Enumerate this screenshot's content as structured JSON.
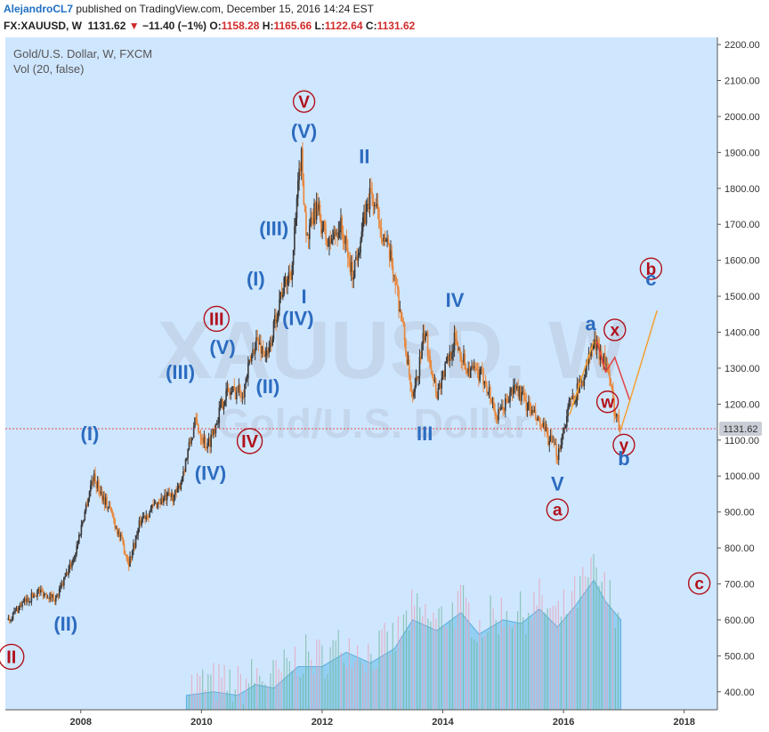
{
  "header": {
    "author": "AlejandroCL7",
    "published": "published on TradingView.com, December 15, 2016 14:24 EST",
    "symbol": "FX:XAUUSD, W",
    "price": "1131.62",
    "change_arrow": "▼",
    "change": "−11.40 (−1%)",
    "o_label": "O:",
    "o_value": "1158.28",
    "h_label": "H:",
    "h_value": "1165.66",
    "l_label": "L:",
    "l_value": "1122.64",
    "c_label": "C:",
    "c_value": "1131.62"
  },
  "chart_data": {
    "type": "candlestick",
    "title": "Gold/U.S. Dollar, W, FXCM",
    "indicator": "Vol (20, false)",
    "watermark_symbol": "XAUUSD, W",
    "watermark_name": "Gold/U.S. Dollar",
    "y_ticks": [
      "2200.00",
      "2100.00",
      "2000.00",
      "1900.00",
      "1800.00",
      "1700.00",
      "1600.00",
      "1500.00",
      "1400.00",
      "1300.00",
      "1200.00",
      "1100.00",
      "1000.00",
      "900.00",
      "800.00",
      "700.00",
      "600.00",
      "500.00",
      "400.00"
    ],
    "x_ticks": [
      "2008",
      "2010",
      "2012",
      "2014",
      "2016",
      "2018"
    ],
    "ylim": [
      350,
      2220
    ],
    "xlim": [
      2006.75,
      2018.55
    ],
    "last_price": 1131.62,
    "last_price_label": "1131.62",
    "price_path": [
      [
        2006.8,
        600
      ],
      [
        2007.0,
        640
      ],
      [
        2007.3,
        680
      ],
      [
        2007.6,
        660
      ],
      [
        2007.9,
        780
      ],
      [
        2008.2,
        1000
      ],
      [
        2008.5,
        900
      ],
      [
        2008.8,
        760
      ],
      [
        2009.0,
        880
      ],
      [
        2009.3,
        930
      ],
      [
        2009.6,
        950
      ],
      [
        2009.9,
        1150
      ],
      [
        2010.1,
        1080
      ],
      [
        2010.4,
        1230
      ],
      [
        2010.7,
        1240
      ],
      [
        2010.9,
        1380
      ],
      [
        2011.1,
        1330
      ],
      [
        2011.3,
        1500
      ],
      [
        2011.5,
        1580
      ],
      [
        2011.65,
        1900
      ],
      [
        2011.75,
        1650
      ],
      [
        2011.9,
        1750
      ],
      [
        2012.1,
        1640
      ],
      [
        2012.3,
        1700
      ],
      [
        2012.5,
        1560
      ],
      [
        2012.8,
        1790
      ],
      [
        2013.0,
        1680
      ],
      [
        2013.2,
        1560
      ],
      [
        2013.35,
        1400
      ],
      [
        2013.5,
        1200
      ],
      [
        2013.7,
        1400
      ],
      [
        2013.9,
        1230
      ],
      [
        2014.2,
        1380
      ],
      [
        2014.4,
        1300
      ],
      [
        2014.7,
        1270
      ],
      [
        2014.9,
        1160
      ],
      [
        2015.2,
        1250
      ],
      [
        2015.5,
        1170
      ],
      [
        2015.7,
        1120
      ],
      [
        2015.9,
        1060
      ],
      [
        2016.1,
        1200
      ],
      [
        2016.3,
        1260
      ],
      [
        2016.5,
        1370
      ],
      [
        2016.7,
        1320
      ],
      [
        2016.85,
        1180
      ],
      [
        2016.95,
        1132
      ]
    ],
    "volume_path": [
      [
        2009.75,
        390
      ],
      [
        2010.2,
        400
      ],
      [
        2010.6,
        390
      ],
      [
        2010.9,
        420
      ],
      [
        2011.2,
        410
      ],
      [
        2011.6,
        470
      ],
      [
        2012.0,
        470
      ],
      [
        2012.4,
        510
      ],
      [
        2012.8,
        480
      ],
      [
        2013.2,
        520
      ],
      [
        2013.5,
        600
      ],
      [
        2013.9,
        570
      ],
      [
        2014.3,
        620
      ],
      [
        2014.6,
        560
      ],
      [
        2015.0,
        600
      ],
      [
        2015.3,
        590
      ],
      [
        2015.6,
        630
      ],
      [
        2015.9,
        580
      ],
      [
        2016.2,
        640
      ],
      [
        2016.5,
        710
      ],
      [
        2016.7,
        650
      ],
      [
        2016.95,
        600
      ]
    ],
    "wave_labels": [
      {
        "text": "II",
        "x": 2006.85,
        "y": 480,
        "color": "#b1111a",
        "circled": true
      },
      {
        "text": "(II)",
        "x": 2007.75,
        "y": 570,
        "color": "#2c6cc0",
        "circled": false
      },
      {
        "text": "(I)",
        "x": 2008.15,
        "y": 1100,
        "color": "#2c6cc0",
        "circled": false
      },
      {
        "text": "(III)",
        "x": 2009.65,
        "y": 1270,
        "color": "#2c6cc0",
        "circled": false
      },
      {
        "text": "III",
        "x": 2010.25,
        "y": 1420,
        "color": "#b1111a",
        "circled": true
      },
      {
        "text": "(IV)",
        "x": 2010.15,
        "y": 990,
        "color": "#2c6cc0",
        "circled": false
      },
      {
        "text": "(V)",
        "x": 2010.35,
        "y": 1340,
        "color": "#2c6cc0",
        "circled": false
      },
      {
        "text": "IV",
        "x": 2010.8,
        "y": 1080,
        "color": "#b1111a",
        "circled": true
      },
      {
        "text": "(II)",
        "x": 2011.1,
        "y": 1230,
        "color": "#2c6cc0",
        "circled": false
      },
      {
        "text": "(I)",
        "x": 2010.9,
        "y": 1530,
        "color": "#2c6cc0",
        "circled": false
      },
      {
        "text": "(III)",
        "x": 2011.2,
        "y": 1670,
        "color": "#2c6cc0",
        "circled": false
      },
      {
        "text": "(IV)",
        "x": 2011.6,
        "y": 1420,
        "color": "#2c6cc0",
        "circled": false
      },
      {
        "text": "I",
        "x": 2011.7,
        "y": 1480,
        "color": "#2c6cc0",
        "circled": false
      },
      {
        "text": "(V)",
        "x": 2011.7,
        "y": 1940,
        "color": "#2c6cc0",
        "circled": false
      },
      {
        "text": "V",
        "x": 2011.7,
        "y": 2025,
        "color": "#b1111a",
        "circled": true
      },
      {
        "text": "II",
        "x": 2012.7,
        "y": 1870,
        "color": "#2c6cc0",
        "circled": false
      },
      {
        "text": "III",
        "x": 2013.7,
        "y": 1100,
        "color": "#2c6cc0",
        "circled": false
      },
      {
        "text": "IV",
        "x": 2014.2,
        "y": 1470,
        "color": "#2c6cc0",
        "circled": false
      },
      {
        "text": "V",
        "x": 2015.9,
        "y": 960,
        "color": "#2c6cc0",
        "circled": false
      },
      {
        "text": "a",
        "x": 2015.9,
        "y": 890,
        "color": "#b1111a",
        "circled": true
      },
      {
        "text": "a",
        "x": 2016.45,
        "y": 1405,
        "color": "#2c6cc0",
        "circled": false
      },
      {
        "text": "x",
        "x": 2016.85,
        "y": 1390,
        "color": "#b1111a",
        "circled": true
      },
      {
        "text": "w",
        "x": 2016.73,
        "y": 1190,
        "color": "#b1111a",
        "circled": true
      },
      {
        "text": "y",
        "x": 2017.0,
        "y": 1070,
        "color": "#b1111a",
        "circled": true
      },
      {
        "text": "b",
        "x": 2017.0,
        "y": 1030,
        "color": "#2c6cc0",
        "circled": false
      },
      {
        "text": "b",
        "x": 2017.45,
        "y": 1560,
        "color": "#b1111a",
        "circled": true
      },
      {
        "text": "c",
        "x": 2017.45,
        "y": 1530,
        "color": "#2c6cc0",
        "circled": false
      },
      {
        "text": "c",
        "x": 2018.25,
        "y": 685,
        "color": "#b1111a",
        "circled": true
      }
    ],
    "projection_lines": [
      {
        "color": "#f3a033",
        "points": [
          [
            2016.1,
            1170
          ],
          [
            2016.5,
            1375
          ]
        ]
      },
      {
        "color": "#e24040",
        "points": [
          [
            2016.55,
            1375
          ],
          [
            2016.7,
            1290
          ],
          [
            2016.85,
            1330
          ],
          [
            2017.1,
            1210
          ]
        ]
      },
      {
        "color": "#f3a033",
        "points": [
          [
            2016.95,
            1130
          ],
          [
            2017.1,
            1210
          ]
        ]
      },
      {
        "color": "#f3a033",
        "points": [
          [
            2017.1,
            1210
          ],
          [
            2017.55,
            1460
          ]
        ]
      }
    ],
    "colors": {
      "background": "#cfe6ff",
      "up_candle": "#3a3a3a",
      "down_candle": "#e8873b",
      "volume_area": "#7fc7ee",
      "price_line": "#e24b4b",
      "price_label_bg": "#c9ced6"
    }
  }
}
